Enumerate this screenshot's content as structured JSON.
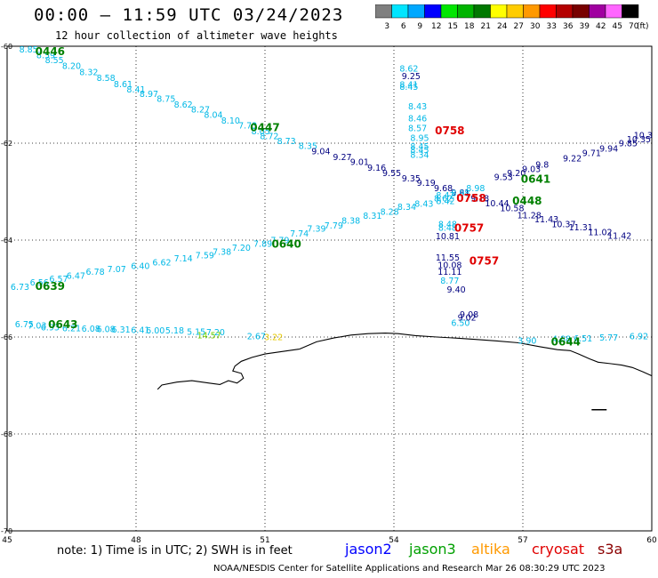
{
  "header": {
    "title": "00:00 – 11:59 UTC 03/24/2023",
    "subtitle": "12 hour collection of altimeter wave heights"
  },
  "colorbar": {
    "unit": "(ft)",
    "bins": [
      {
        "label": "3",
        "color": "#7f7f7f"
      },
      {
        "label": "6",
        "color": "#00e5ff"
      },
      {
        "label": "9",
        "color": "#00a8ff"
      },
      {
        "label": "12",
        "color": "#0000ff"
      },
      {
        "label": "15",
        "color": "#00e600"
      },
      {
        "label": "18",
        "color": "#00b400"
      },
      {
        "label": "21",
        "color": "#007800"
      },
      {
        "label": "24",
        "color": "#ffff00"
      },
      {
        "label": "27",
        "color": "#ffcc00"
      },
      {
        "label": "30",
        "color": "#ff9900"
      },
      {
        "label": "33",
        "color": "#ff0000"
      },
      {
        "label": "36",
        "color": "#b40000"
      },
      {
        "label": "39",
        "color": "#780000"
      },
      {
        "label": "42",
        "color": "#a000a0"
      },
      {
        "label": "45",
        "color": "#ff66ff"
      },
      {
        "label": "70",
        "color": "#000000"
      }
    ]
  },
  "map": {
    "lon_range": [
      45,
      60
    ],
    "lat_range": [
      -70,
      -60
    ],
    "lon_ticks": [
      "45",
      "48",
      "51",
      "54",
      "57",
      "60"
    ],
    "lat_ticks": [
      "-60",
      "-62",
      "-64",
      "-66",
      "-68",
      "-70"
    ]
  },
  "tracks": [
    {
      "color": "#00b8e6",
      "points": [
        {
          "lon": 45.5,
          "lat": -60.13,
          "v": "8.85"
        },
        {
          "lon": 45.9,
          "lat": -60.25,
          "v": "8.59"
        },
        {
          "lon": 46.1,
          "lat": -60.35,
          "v": "8.55"
        },
        {
          "lon": 46.5,
          "lat": -60.47,
          "v": "8.20"
        },
        {
          "lon": 46.9,
          "lat": -60.6,
          "v": "8.32"
        },
        {
          "lon": 47.3,
          "lat": -60.72,
          "v": "8.58"
        },
        {
          "lon": 47.7,
          "lat": -60.84,
          "v": "8.61"
        },
        {
          "lon": 48.0,
          "lat": -60.95,
          "v": "8.41"
        },
        {
          "lon": 48.3,
          "lat": -61.05,
          "v": "8.97"
        },
        {
          "lon": 48.7,
          "lat": -61.15,
          "v": "8.75"
        },
        {
          "lon": 49.1,
          "lat": -61.27,
          "v": "8.62"
        },
        {
          "lon": 49.5,
          "lat": -61.37,
          "v": "8.27"
        },
        {
          "lon": 49.8,
          "lat": -61.48,
          "v": "8.04"
        },
        {
          "lon": 50.2,
          "lat": -61.6,
          "v": "8.10"
        },
        {
          "lon": 50.6,
          "lat": -61.7,
          "v": "7.73"
        },
        {
          "lon": 50.9,
          "lat": -61.82,
          "v": "8.05"
        },
        {
          "lon": 51.1,
          "lat": -61.92,
          "v": "8.72"
        },
        {
          "lon": 51.5,
          "lat": -62.02,
          "v": "8.73"
        },
        {
          "lon": 52.0,
          "lat": -62.12,
          "v": "8.35"
        }
      ]
    },
    {
      "color": "#000080",
      "points": [
        {
          "lon": 52.3,
          "lat": -62.23,
          "v": "9.04"
        },
        {
          "lon": 52.8,
          "lat": -62.35,
          "v": "9.27"
        },
        {
          "lon": 53.2,
          "lat": -62.45,
          "v": "9.01"
        },
        {
          "lon": 53.6,
          "lat": -62.57,
          "v": "9.16"
        },
        {
          "lon": 53.95,
          "lat": -62.68,
          "v": "9.55"
        },
        {
          "lon": 54.4,
          "lat": -62.79,
          "v": "9.35"
        },
        {
          "lon": 54.75,
          "lat": -62.88,
          "v": "9.19"
        },
        {
          "lon": 55.15,
          "lat": -62.99,
          "v": "9.68"
        },
        {
          "lon": 55.55,
          "lat": -63.08,
          "v": "9.81"
        },
        {
          "lon": 56.0,
          "lat": -63.2,
          "v": "9.18"
        },
        {
          "lon": 56.4,
          "lat": -63.3,
          "v": "10.44"
        },
        {
          "lon": 56.75,
          "lat": -63.4,
          "v": "10.58"
        },
        {
          "lon": 57.15,
          "lat": -63.55,
          "v": "11.28"
        },
        {
          "lon": 57.55,
          "lat": -63.63,
          "v": "11.43"
        },
        {
          "lon": 57.95,
          "lat": -63.73,
          "v": "10.37"
        },
        {
          "lon": 58.35,
          "lat": -63.8,
          "v": "11.31"
        },
        {
          "lon": 58.8,
          "lat": -63.9,
          "v": "11.02"
        },
        {
          "lon": 59.25,
          "lat": -63.97,
          "v": "11.42"
        }
      ]
    },
    {
      "color": "#00b8e6",
      "points": [
        {
          "lon": 45.3,
          "lat": -65.03,
          "v": "6.73"
        },
        {
          "lon": 45.75,
          "lat": -64.94,
          "v": "6.56"
        },
        {
          "lon": 46.2,
          "lat": -64.86,
          "v": "6.57"
        },
        {
          "lon": 46.6,
          "lat": -64.8,
          "v": "6.47"
        },
        {
          "lon": 47.05,
          "lat": -64.72,
          "v": "6.78"
        },
        {
          "lon": 47.55,
          "lat": -64.66,
          "v": "7.07"
        },
        {
          "lon": 48.1,
          "lat": -64.6,
          "v": "6.40"
        },
        {
          "lon": 48.6,
          "lat": -64.52,
          "v": "6.62"
        },
        {
          "lon": 49.1,
          "lat": -64.44,
          "v": "7.14"
        },
        {
          "lon": 49.6,
          "lat": -64.38,
          "v": "7.59"
        },
        {
          "lon": 50.0,
          "lat": -64.3,
          "v": "7.38"
        },
        {
          "lon": 50.45,
          "lat": -64.22,
          "v": "7.20"
        },
        {
          "lon": 50.95,
          "lat": -64.14,
          "v": "7.89"
        },
        {
          "lon": 51.35,
          "lat": -64.06,
          "v": "7.79"
        },
        {
          "lon": 51.8,
          "lat": -63.93,
          "v": "7.74"
        },
        {
          "lon": 52.2,
          "lat": -63.83,
          "v": "7.39"
        },
        {
          "lon": 52.6,
          "lat": -63.76,
          "v": "7.79"
        },
        {
          "lon": 53.0,
          "lat": -63.66,
          "v": "8.38"
        },
        {
          "lon": 53.5,
          "lat": -63.56,
          "v": "8.31"
        },
        {
          "lon": 53.9,
          "lat": -63.48,
          "v": "8.28"
        },
        {
          "lon": 54.3,
          "lat": -63.38,
          "v": "8.34"
        },
        {
          "lon": 54.7,
          "lat": -63.31,
          "v": "8.43"
        },
        {
          "lon": 55.15,
          "lat": -63.2,
          "v": "8.62"
        },
        {
          "lon": 55.55,
          "lat": -63.09,
          "v": "8.98"
        },
        {
          "lon": 55.9,
          "lat": -62.99,
          "v": "8.98"
        }
      ]
    },
    {
      "color": "#000080",
      "points": [
        {
          "lon": 56.55,
          "lat": -62.76,
          "v": "9.53"
        },
        {
          "lon": 56.85,
          "lat": -62.68,
          "v": "9.20"
        },
        {
          "lon": 57.2,
          "lat": -62.6,
          "v": "9.03"
        },
        {
          "lon": 57.45,
          "lat": -62.5,
          "v": "9.8"
        },
        {
          "lon": 58.15,
          "lat": -62.38,
          "v": "9.22"
        },
        {
          "lon": 58.6,
          "lat": -62.27,
          "v": "9.71"
        },
        {
          "lon": 59.0,
          "lat": -62.17,
          "v": "9.94"
        },
        {
          "lon": 59.45,
          "lat": -62.06,
          "v": "9.85"
        },
        {
          "lon": 59.7,
          "lat": -61.98,
          "v": "10.35"
        },
        {
          "lon": 59.8,
          "lat": -61.9,
          "v": "10.3"
        }
      ]
    },
    {
      "color": "#00b8e6",
      "points": [
        {
          "lon": 45.4,
          "lat": -65.8,
          "v": "6.75"
        },
        {
          "lon": 45.7,
          "lat": -65.83,
          "v": "7.03"
        },
        {
          "lon": 46.0,
          "lat": -65.86,
          "v": "6.93"
        },
        {
          "lon": 46.5,
          "lat": -65.88,
          "v": "6.21"
        },
        {
          "lon": 46.95,
          "lat": -65.89,
          "v": "6.08"
        },
        {
          "lon": 47.3,
          "lat": -65.9,
          "v": "6.08"
        },
        {
          "lon": 47.65,
          "lat": -65.91,
          "v": "6.31"
        },
        {
          "lon": 48.1,
          "lat": -65.92,
          "v": "6.41"
        },
        {
          "lon": 48.45,
          "lat": -65.93,
          "v": "6.00"
        },
        {
          "lon": 48.9,
          "lat": -65.93,
          "v": "5.18"
        },
        {
          "lon": 49.4,
          "lat": -65.95,
          "v": "5.15"
        },
        {
          "lon": 49.85,
          "lat": -65.96,
          "v": "7.20"
        },
        {
          "lon": 50.8,
          "lat": -66.05,
          "v": "2.67"
        }
      ]
    },
    {
      "color": "#00b8e6",
      "points": [
        {
          "lon": 54.35,
          "lat": -60.52,
          "v": "8.62"
        },
        {
          "lon": 54.35,
          "lat": -60.85,
          "v": "8.41"
        },
        {
          "lon": 54.35,
          "lat": -60.9,
          "v": "8.45"
        },
        {
          "lon": 54.55,
          "lat": -61.3,
          "v": "8.43"
        },
        {
          "lon": 54.55,
          "lat": -61.55,
          "v": "8.46"
        },
        {
          "lon": 54.55,
          "lat": -61.75,
          "v": "8.57"
        },
        {
          "lon": 54.6,
          "lat": -61.95,
          "v": "8.95"
        },
        {
          "lon": 54.6,
          "lat": -62.13,
          "v": "8.45"
        },
        {
          "lon": 54.6,
          "lat": -62.2,
          "v": "8.45"
        },
        {
          "lon": 54.6,
          "lat": -62.3,
          "v": "8.34"
        },
        {
          "lon": 55.2,
          "lat": -63.14,
          "v": "8.42"
        },
        {
          "lon": 55.2,
          "lat": -63.26,
          "v": "8.42"
        },
        {
          "lon": 55.25,
          "lat": -63.73,
          "v": "8.48"
        },
        {
          "lon": 55.25,
          "lat": -63.81,
          "v": "8.48"
        },
        {
          "lon": 55.3,
          "lat": -64.9,
          "v": "8.77"
        },
        {
          "lon": 55.55,
          "lat": -65.77,
          "v": "6.50"
        }
      ]
    },
    {
      "color": "#000080",
      "points": [
        {
          "lon": 54.4,
          "lat": -60.68,
          "v": "9.25"
        },
        {
          "lon": 55.25,
          "lat": -63.98,
          "v": "10.81"
        },
        {
          "lon": 55.25,
          "lat": -64.42,
          "v": "11.55"
        },
        {
          "lon": 55.3,
          "lat": -64.58,
          "v": "10.08"
        },
        {
          "lon": 55.3,
          "lat": -64.72,
          "v": "11.11"
        },
        {
          "lon": 55.45,
          "lat": -65.08,
          "v": "9.40"
        },
        {
          "lon": 55.75,
          "lat": -65.6,
          "v": "9.08"
        },
        {
          "lon": 55.7,
          "lat": -65.66,
          "v": "9.02"
        }
      ]
    },
    {
      "color": "#00b8e6",
      "points": [
        {
          "lon": 57.1,
          "lat": -66.14,
          "v": "3.90"
        },
        {
          "lon": 57.9,
          "lat": -66.1,
          "v": "4.88"
        },
        {
          "lon": 58.4,
          "lat": -66.09,
          "v": "6.51"
        },
        {
          "lon": 59.0,
          "lat": -66.07,
          "v": "5.77"
        },
        {
          "lon": 59.7,
          "lat": -66.05,
          "v": "6.92"
        }
      ]
    }
  ],
  "passes": [
    {
      "time": "0446",
      "lon": 46.0,
      "lat": -60.18,
      "satellite": "jason3",
      "color": "#008000"
    },
    {
      "time": "0447",
      "lon": 51.0,
      "lat": -61.75,
      "satellite": "jason3",
      "color": "#008000"
    },
    {
      "time": "0758",
      "lon": 55.3,
      "lat": -61.82,
      "satellite": "cryosat",
      "color": "#e00000"
    },
    {
      "time": "0758",
      "lon": 55.8,
      "lat": -63.21,
      "satellite": "cryosat",
      "color": "#e00000"
    },
    {
      "time": "0757",
      "lon": 55.75,
      "lat": -63.83,
      "satellite": "cryosat",
      "color": "#e00000"
    },
    {
      "time": "0757",
      "lon": 56.1,
      "lat": -64.5,
      "satellite": "cryosat",
      "color": "#e00000"
    },
    {
      "time": "0448",
      "lon": 57.1,
      "lat": -63.27,
      "satellite": "jason3",
      "color": "#008000"
    },
    {
      "time": "0641",
      "lon": 57.3,
      "lat": -62.82,
      "satellite": "jason3",
      "color": "#008000"
    },
    {
      "time": "0640",
      "lon": 51.5,
      "lat": -64.16,
      "satellite": "jason3",
      "color": "#008000"
    },
    {
      "time": "0639",
      "lon": 46.0,
      "lat": -65.03,
      "satellite": "jason3",
      "color": "#008000"
    },
    {
      "time": "0643",
      "lon": 46.3,
      "lat": -65.82,
      "satellite": "jason3",
      "color": "#008000"
    },
    {
      "time": "0644",
      "lon": 58.0,
      "lat": -66.17,
      "satellite": "jason3",
      "color": "#008000"
    }
  ],
  "altika": [
    {
      "lon": 49.7,
      "lat": -66.03,
      "v": "14.57",
      "color": "#78d000"
    },
    {
      "lon": 51.2,
      "lat": -66.06,
      "v": "3.22",
      "color": "#e6c800"
    }
  ],
  "footer": {
    "note": "note:  1) Time is in UTC;  2) SWH is in feet",
    "satellites": [
      {
        "name": "jason2",
        "color": "#0000ff"
      },
      {
        "name": "jason3",
        "color": "#00a000"
      },
      {
        "name": "altika",
        "color": "#ff9900"
      },
      {
        "name": "cryosat",
        "color": "#e00000"
      },
      {
        "name": "s3a",
        "color": "#8b0000"
      }
    ],
    "credit": "NOAA/NESDIS Center for Satellite Applications and Research    Mar 26 08:30:29 UTC 2023"
  }
}
